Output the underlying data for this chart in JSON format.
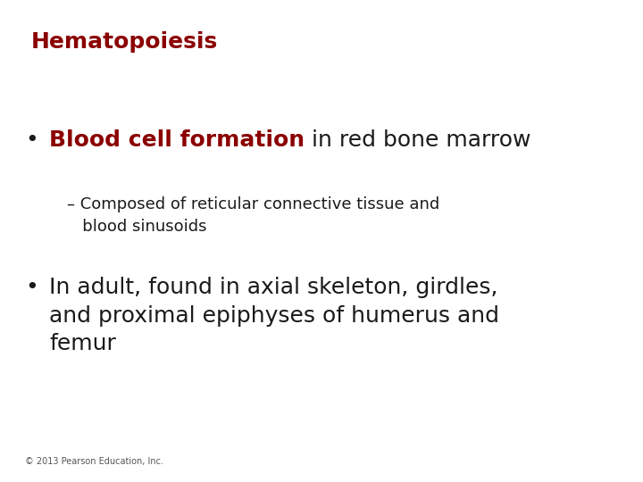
{
  "title": "Hematopoiesis",
  "title_color": "#8B0000",
  "title_fontsize": 18,
  "background_color": "#ffffff",
  "bullet1_colored_text": "Blood cell formation",
  "bullet1_colored_color": "#8B0000",
  "bullet1_rest_text": " in red bone marrow",
  "bullet1_rest_color": "#1a1a1a",
  "bullet1_fontsize": 18,
  "sub_bullet_text": "– Composed of reticular connective tissue and\n   blood sinusoids",
  "sub_bullet_color": "#1a1a1a",
  "sub_bullet_fontsize": 13,
  "bullet2_text": "In adult, found in axial skeleton, girdles,\nand proximal epiphyses of humerus and\nfemur",
  "bullet2_color": "#1a1a1a",
  "bullet2_fontsize": 18,
  "bullet_marker": "•",
  "bullet_marker_color": "#1a1a1a",
  "footer_text": "© 2013 Pearson Education, Inc.",
  "footer_color": "#555555",
  "footer_fontsize": 7
}
